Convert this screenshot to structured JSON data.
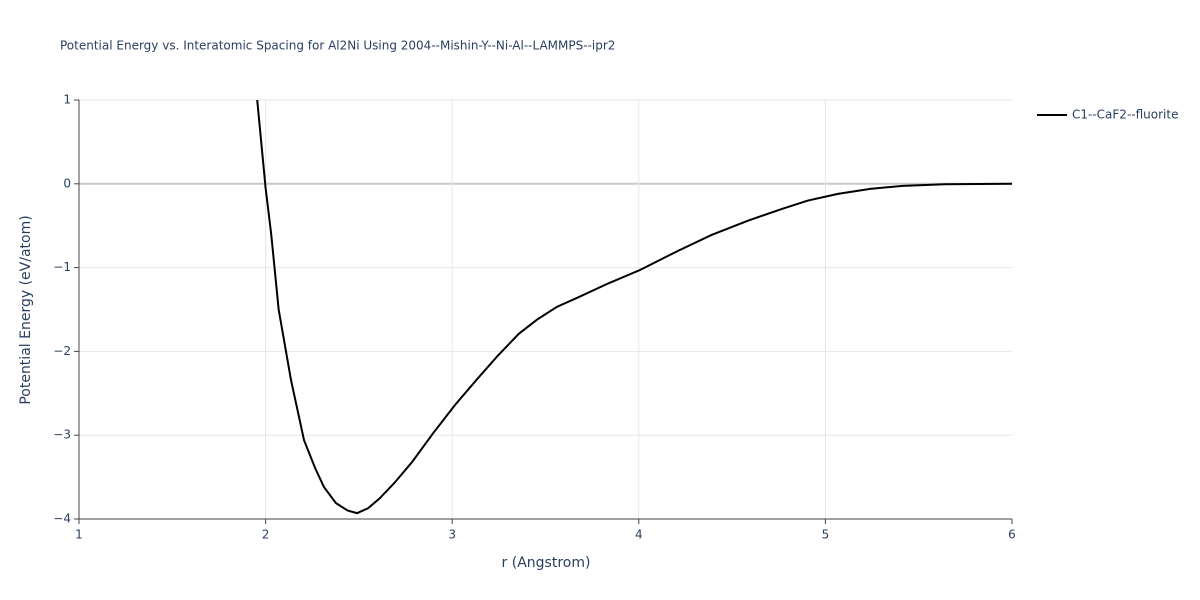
{
  "chart_data": {
    "type": "line",
    "title": "Potential Energy vs. Interatomic Spacing for Al2Ni Using 2004--Mishin-Y--Ni-Al--LAMMPS--ipr2",
    "x_label": "r (Angstrom)",
    "y_label": "Potential Energy (eV/atom)",
    "xlim": [
      1,
      6
    ],
    "ylim": [
      -4,
      1
    ],
    "xticks": [
      1,
      2,
      3,
      4,
      5,
      6
    ],
    "yticks": [
      {
        "value": -4,
        "label": "−4"
      },
      {
        "value": -3,
        "label": "−3"
      },
      {
        "value": -2,
        "label": "−2"
      },
      {
        "value": -1,
        "label": "−1"
      },
      0,
      1
    ],
    "grid": true,
    "legend": "right",
    "series": [
      {
        "name": "C1--CaF2--fluorite",
        "color": "#000000",
        "x": [
          1.955,
          2.0,
          2.03,
          2.07,
          2.136,
          2.206,
          2.265,
          2.313,
          2.377,
          2.44,
          2.49,
          2.55,
          2.613,
          2.69,
          2.785,
          2.9,
          3.015,
          3.13,
          3.245,
          3.357,
          3.455,
          3.56,
          3.68,
          3.835,
          4.005,
          4.21,
          4.39,
          4.585,
          4.767,
          4.906,
          5.067,
          5.24,
          5.415,
          5.64,
          6.0
        ],
        "values": [
          1.0,
          -0.05,
          -0.6,
          -1.5,
          -2.34,
          -3.06,
          -3.39,
          -3.62,
          -3.81,
          -3.9,
          -3.93,
          -3.87,
          -3.75,
          -3.57,
          -3.32,
          -2.97,
          -2.64,
          -2.34,
          -2.05,
          -1.79,
          -1.62,
          -1.47,
          -1.35,
          -1.19,
          -1.03,
          -0.8,
          -0.61,
          -0.44,
          -0.3,
          -0.2,
          -0.12,
          -0.06,
          -0.025,
          -0.005,
          0.0
        ]
      }
    ]
  }
}
